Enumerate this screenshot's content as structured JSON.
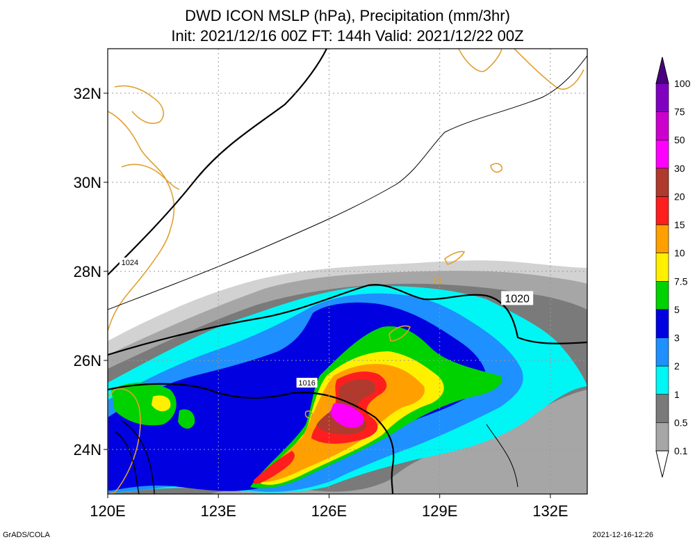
{
  "title": {
    "line1": "DWD ICON MSLP (hPa), Precipitation (mm/3hr)",
    "line2": "Init: 2021/12/16 00Z  FT: 144h  Valid: 2021/12/22 00Z"
  },
  "map": {
    "lon_range": [
      120,
      133
    ],
    "lat_range": [
      23,
      33
    ],
    "lon_ticks": [
      {
        "value": 120,
        "label": "120E"
      },
      {
        "value": 123,
        "label": "123E"
      },
      {
        "value": 126,
        "label": "126E"
      },
      {
        "value": 129,
        "label": "129E"
      },
      {
        "value": 132,
        "label": "132E"
      }
    ],
    "lat_ticks": [
      {
        "value": 24,
        "label": "24N"
      },
      {
        "value": 26,
        "label": "26N"
      },
      {
        "value": 28,
        "label": "28N"
      },
      {
        "value": 30,
        "label": "30N"
      },
      {
        "value": 32,
        "label": "32N"
      }
    ],
    "isobar_labels": [
      {
        "text": "1024",
        "lon": 120.6,
        "lat": 28.2
      },
      {
        "text": "1020",
        "lon": 131.1,
        "lat": 27.4
      },
      {
        "text": "1016",
        "lon": 125.4,
        "lat": 25.5
      }
    ]
  },
  "colorbar": {
    "levels": [
      {
        "label": "0.1",
        "color": "#d2d2d2"
      },
      {
        "label": "0.5",
        "color": "#a6a6a6"
      },
      {
        "label": "1",
        "color": "#7a7a7a"
      },
      {
        "label": "2",
        "color": "#00f5f5"
      },
      {
        "label": "3",
        "color": "#1e90ff"
      },
      {
        "label": "5",
        "color": "#0000e0"
      },
      {
        "label": "7.5",
        "color": "#00d200"
      },
      {
        "label": "10",
        "color": "#fff000"
      },
      {
        "label": "15",
        "color": "#ffa000"
      },
      {
        "label": "20",
        "color": "#ff1e1e"
      },
      {
        "label": "30",
        "color": "#b03a2e"
      },
      {
        "label": "50",
        "color": "#ff00ff"
      },
      {
        "label": "75",
        "color": "#cc00cc"
      },
      {
        "label": "100",
        "color": "#8000c0"
      }
    ],
    "top_color": "#4b0082"
  },
  "footer": {
    "left": "GrADS/COLA",
    "right": "2021-12-16-12:26"
  },
  "colors": {
    "coast": "#e0a030",
    "grid": "#9a9a9a"
  }
}
